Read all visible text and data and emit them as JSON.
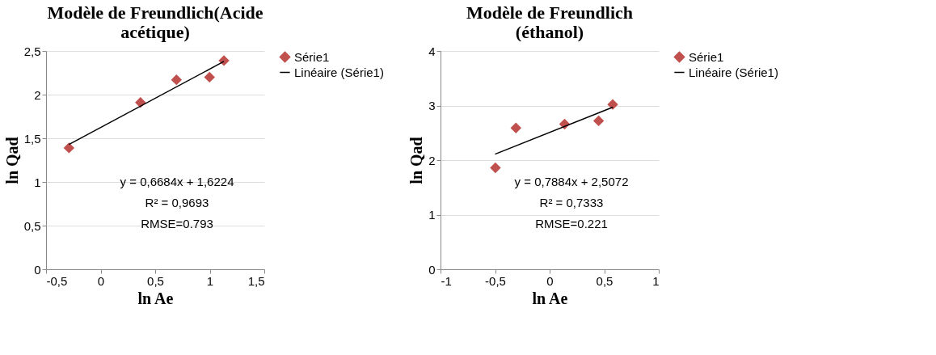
{
  "chart_data": [
    {
      "type": "scatter",
      "title": "Modèle de Freundlich(Acide acétique)",
      "xlabel": "ln Ae",
      "ylabel": "ln Qad",
      "x": [
        -0.29,
        0.365,
        0.695,
        0.998,
        1.13
      ],
      "series": [
        {
          "name": "Série1",
          "color": "#c0504d",
          "values": [
            1.39,
            1.91,
            2.17,
            2.2,
            2.39
          ]
        },
        {
          "name": "Linéaire (Série1)",
          "type": "line",
          "color": "#000000",
          "x": [
            -0.29,
            1.13
          ],
          "values": [
            1.43,
            2.38
          ],
          "marker": "none"
        }
      ],
      "xlim": [
        -0.5,
        1.5
      ],
      "xticks": [
        {
          "value": -0.5,
          "label": "-0,5"
        },
        0,
        {
          "value": 0.5,
          "label": "0,5"
        },
        1,
        {
          "value": 1.5,
          "label": "1,5"
        }
      ],
      "ylim": [
        0,
        2.5
      ],
      "yticks": [
        0,
        {
          "value": 0.5,
          "label": "0,5"
        },
        1,
        {
          "value": 1.5,
          "label": "1,5"
        },
        2,
        {
          "value": 2.5,
          "label": "2,5"
        }
      ],
      "annotations": [
        "y = 0,6684x + 1,6224",
        "R² = 0,9693",
        "RMSE=0.793"
      ],
      "grid": "y",
      "legend": "right",
      "marker": "diamond"
    },
    {
      "type": "scatter",
      "title": "Modèle de Freundlich (éthanol)",
      "xlabel": "ln Ae",
      "ylabel": "ln Qad",
      "x": [
        -0.497,
        -0.309,
        0.137,
        0.449,
        0.578
      ],
      "series": [
        {
          "name": "Série1",
          "color": "#c0504d",
          "values": [
            1.86,
            2.59,
            2.66,
            2.72,
            3.02
          ]
        },
        {
          "name": "Linéaire (Série1)",
          "type": "line",
          "color": "#000000",
          "x": [
            -0.5,
            0.58
          ],
          "values": [
            2.11,
            2.97
          ],
          "marker": "none"
        }
      ],
      "xlim": [
        -1,
        1
      ],
      "xticks": [
        -1,
        {
          "value": -0.5,
          "label": "-0,5"
        },
        0,
        {
          "value": 0.5,
          "label": "0,5"
        },
        1
      ],
      "ylim": [
        0,
        4
      ],
      "yticks": [
        0,
        1,
        2,
        3,
        4
      ],
      "annotations": [
        "y = 0,7884x + 2,5072",
        "R² = 0,7333",
        "RMSE=0.221"
      ],
      "grid": "y",
      "legend": "right",
      "marker": "diamond"
    }
  ]
}
